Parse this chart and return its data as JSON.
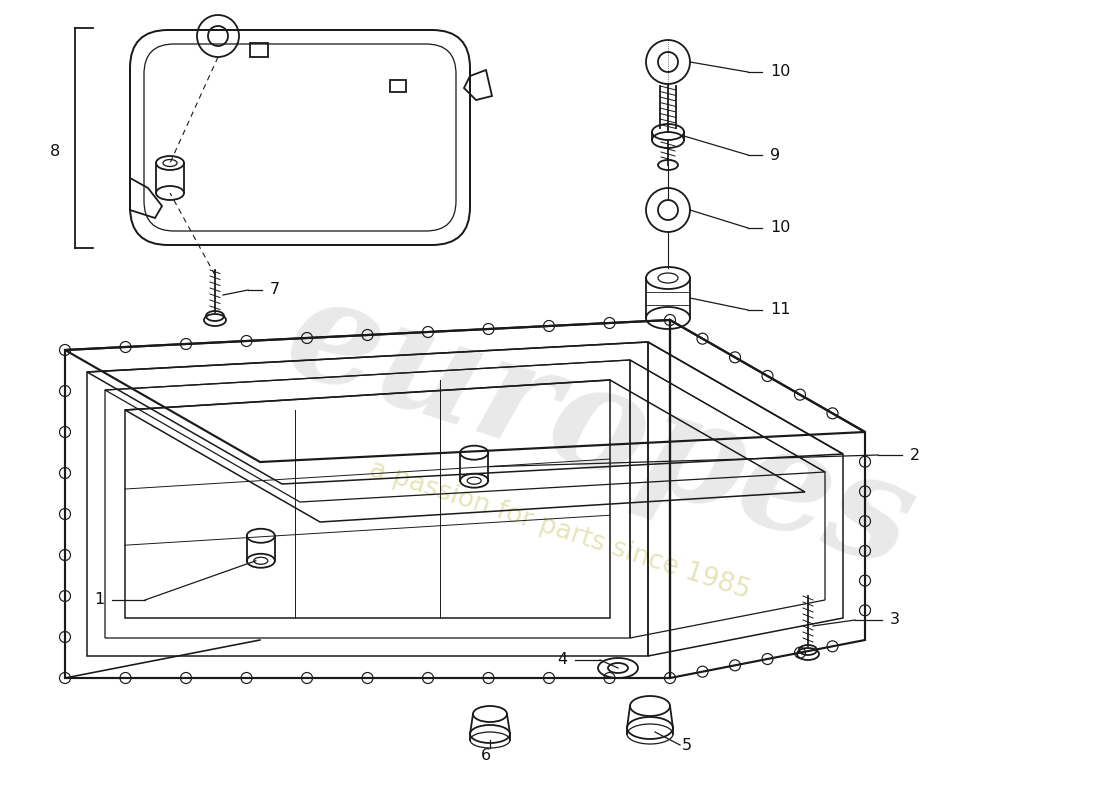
{
  "bg": "#ffffff",
  "lc": "#1a1a1a",
  "wm1": "europes",
  "wm2": "a passion for parts since 1985",
  "wc1": "#b8b8b8",
  "wc2": "#d0d080"
}
